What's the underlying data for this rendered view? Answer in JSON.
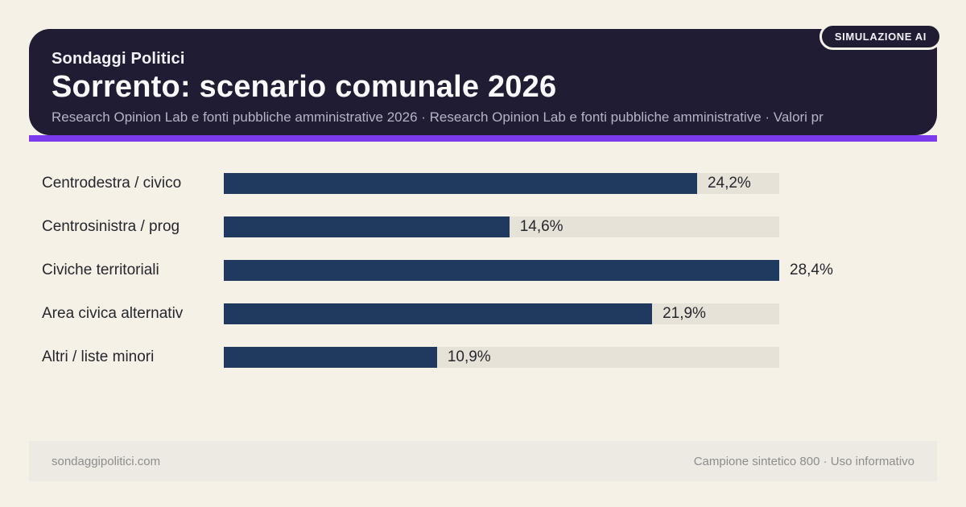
{
  "badge": {
    "label": "SIMULAZIONE AI"
  },
  "header": {
    "kicker": "Sondaggi Politici",
    "title": "Sorrento: scenario comunale 2026",
    "subtitle": "Research Opinion Lab e fonti pubbliche amministrative 2026 · Research Opinion Lab e fonti pubbliche amministrative · Valori pr"
  },
  "chart_data": {
    "type": "bar",
    "orientation": "horizontal",
    "title": "Sorrento: scenario comunale 2026",
    "categories": [
      "Centrodestra / civico",
      "Centrosinistra / prog",
      "Civiche territoriali",
      "Area civica alternativ",
      "Altri / liste minori"
    ],
    "values": [
      24.2,
      14.6,
      28.4,
      21.9,
      10.9
    ],
    "value_labels": [
      "24,2%",
      "14,6%",
      "28,4%",
      "21,9%",
      "10,9%"
    ],
    "unit": "percent",
    "axis_max": 28.4,
    "grid": false,
    "legend": "none",
    "colors": {
      "bar": "#1f3a5e",
      "track": "#e6e2d8"
    }
  },
  "footer": {
    "left": "sondaggipolitici.com",
    "right": "Campione sintetico 800 · Uso informativo"
  },
  "colors": {
    "background": "#f6f1e7",
    "header_bg": "#201c34",
    "accent": "#7c3aed",
    "footer_bg": "#edeae4"
  }
}
